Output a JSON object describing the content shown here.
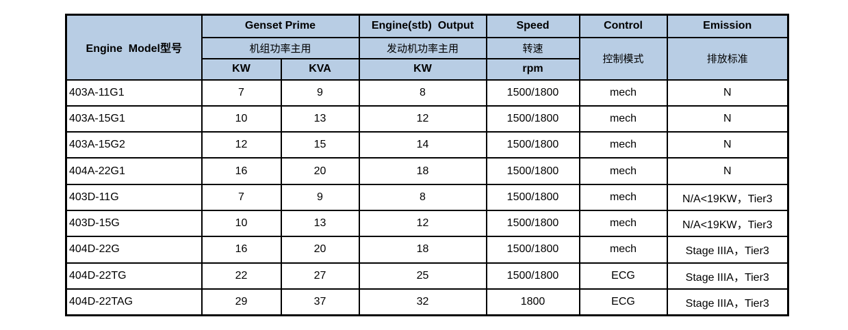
{
  "colors": {
    "header_bg": "#B8CDE4",
    "border": "#000000",
    "text": "#000000",
    "row_bg": "#FFFFFF"
  },
  "table": {
    "header": {
      "engine_model": "Engine  Model型号",
      "genset_prime": {
        "en": "Genset Prime",
        "zh": "机组功率主用",
        "unit_kw": "KW",
        "unit_kva": "KVA"
      },
      "engine_output": {
        "en": "Engine(stb)  Output",
        "zh": "发动机功率主用",
        "unit": "KW"
      },
      "speed": {
        "en": "Speed",
        "zh": "转速",
        "unit": "rpm"
      },
      "control": {
        "en": "Control",
        "zh": "控制模式"
      },
      "emission": {
        "en": "Emission",
        "zh": "排放标准"
      }
    },
    "rows": [
      {
        "model": "403A-11G1",
        "genset_kw": "7",
        "genset_kva": "9",
        "engine_kw": "8",
        "speed": "1500/1800",
        "control": "mech",
        "emission": "N"
      },
      {
        "model": "403A-15G1",
        "genset_kw": "10",
        "genset_kva": "13",
        "engine_kw": "12",
        "speed": "1500/1800",
        "control": "mech",
        "emission": "N"
      },
      {
        "model": "403A-15G2",
        "genset_kw": "12",
        "genset_kva": "15",
        "engine_kw": "14",
        "speed": "1500/1800",
        "control": "mech",
        "emission": "N"
      },
      {
        "model": "404A-22G1",
        "genset_kw": "16",
        "genset_kva": "20",
        "engine_kw": "18",
        "speed": "1500/1800",
        "control": "mech",
        "emission": "N"
      },
      {
        "model": "403D-11G",
        "genset_kw": "7",
        "genset_kva": "9",
        "engine_kw": "8",
        "speed": "1500/1800",
        "control": "mech",
        "emission": "N/A<19KW，Tier3"
      },
      {
        "model": "403D-15G",
        "genset_kw": "10",
        "genset_kva": "13",
        "engine_kw": "12",
        "speed": "1500/1800",
        "control": "mech",
        "emission": "N/A<19KW，Tier3"
      },
      {
        "model": "404D-22G",
        "genset_kw": "16",
        "genset_kva": "20",
        "engine_kw": "18",
        "speed": "1500/1800",
        "control": "mech",
        "emission": "Stage IIIA，Tier3"
      },
      {
        "model": "404D-22TG",
        "genset_kw": "22",
        "genset_kva": "27",
        "engine_kw": "25",
        "speed": "1500/1800",
        "control": "ECG",
        "emission": "Stage IIIA，Tier3"
      },
      {
        "model": "404D-22TAG",
        "genset_kw": "29",
        "genset_kva": "37",
        "engine_kw": "32",
        "speed": "1800",
        "control": "ECG",
        "emission": "Stage IIIA，Tier3"
      }
    ]
  }
}
